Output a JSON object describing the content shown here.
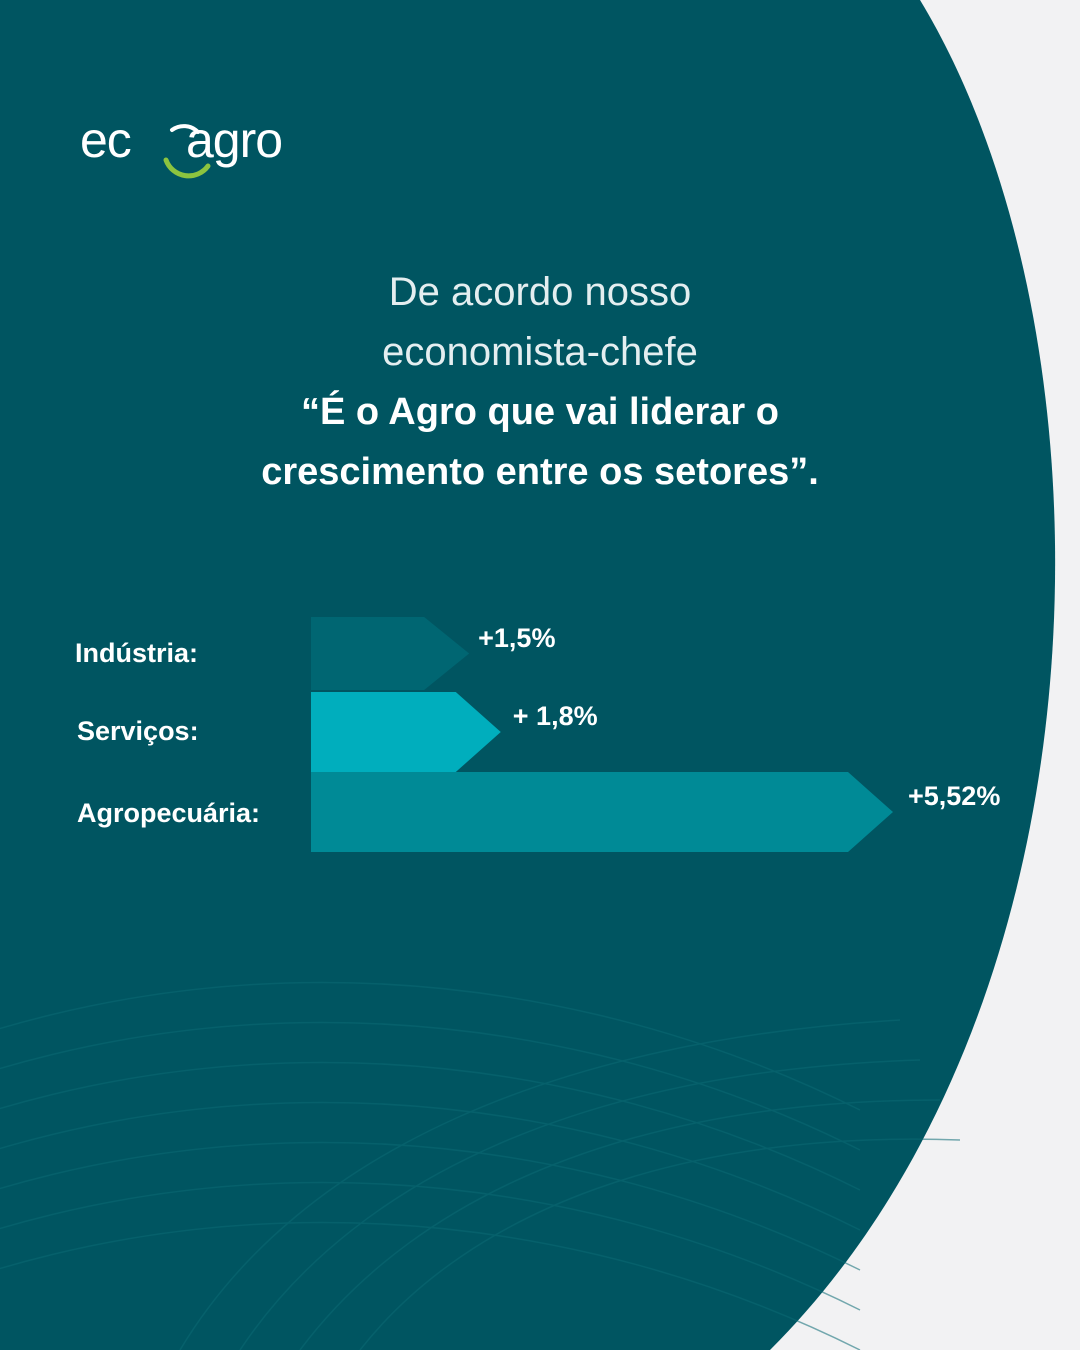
{
  "brand": {
    "logo_text_left": "ec",
    "logo_text_right": "agro",
    "logo_icon": "recycle-arc-icon",
    "colors": {
      "background": "#f2f2f3",
      "panel": "#005561",
      "logo_arc_green": "#8cc43f",
      "text": "#ffffff"
    }
  },
  "headline": {
    "line1": "De acordo nosso",
    "line2": "economista-chefe",
    "quote_line1": "“É o Agro que vai liderar o",
    "quote_line2": "crescimento entre os setores”."
  },
  "chart_data": {
    "type": "bar",
    "orientation": "horizontal",
    "title": "",
    "xlabel": "",
    "ylabel": "",
    "grid": false,
    "categories": [
      "Indústria:",
      "Serviços:",
      "Agropecuária:"
    ],
    "values": [
      1.5,
      1.8,
      5.52
    ],
    "value_labels": [
      "+1,5%",
      "+ 1,8%",
      "+5,52%"
    ],
    "colors": [
      "#006672",
      "#00aebd",
      "#008a96"
    ],
    "xlim": [
      0,
      5.52
    ]
  }
}
